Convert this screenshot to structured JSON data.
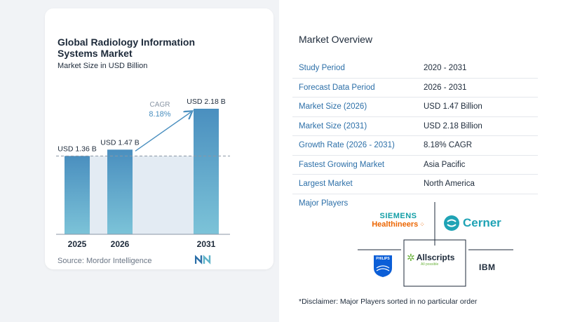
{
  "chart_data": {
    "type": "bar",
    "title": "Global Radiology Information Systems Market",
    "subtitle": "Market Size in USD Billion",
    "categories": [
      "2025",
      "2026",
      "2031"
    ],
    "values": [
      1.36,
      1.47,
      2.18
    ],
    "data_labels": [
      "USD 1.36 B",
      "USD 1.47 B",
      "USD 2.18 B"
    ],
    "annotation": {
      "label": "CAGR",
      "value": "8.18%"
    },
    "reference_line_value": 1.36,
    "ylim": [
      0,
      2.18
    ],
    "grid": false,
    "colors": {
      "bar_top": "#4a8fbf",
      "bar_bottom": "#7cc3d8",
      "shade": "#e3ebf3",
      "arrow": "#4a8fbf",
      "axis": "#8a96a5"
    }
  },
  "source": "Source:  Mordor Intelligence",
  "overview": {
    "title": "Market Overview",
    "rows": [
      {
        "key": "Study Period",
        "value": "2020 - 2031"
      },
      {
        "key": "Forecast Data Period",
        "value": "2026 - 2031"
      },
      {
        "key": "Market Size (2026)",
        "value": "USD 1.47 Billion"
      },
      {
        "key": "Market Size (2031)",
        "value": "USD 2.18 Billion"
      },
      {
        "key": "Growth Rate (2026 - 2031)",
        "value": "8.18% CAGR"
      },
      {
        "key": "Fastest Growing Market",
        "value": "Asia Pacific"
      },
      {
        "key": "Largest Market",
        "value": "North America"
      }
    ]
  },
  "players": {
    "title": "Major Players",
    "siemens_top": "SIEMENS",
    "siemens_bottom": "Healthineers",
    "cerner": "Cerner",
    "philips": "PHILIPS",
    "allscripts": "Allscripts",
    "allscripts_tag": "All possible",
    "ibm": "IBM"
  },
  "disclaimer": "*Disclaimer: Major Players sorted in no particular order"
}
